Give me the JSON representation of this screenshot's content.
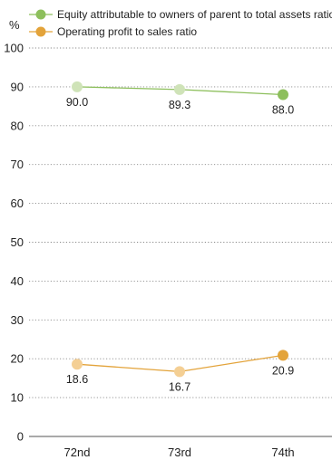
{
  "chart_data": {
    "type": "line",
    "ylabel": "%",
    "xlabel": "",
    "categories": [
      "72nd",
      "73rd",
      "74th"
    ],
    "ylim": [
      0,
      100
    ],
    "yticks": [
      0,
      10,
      20,
      30,
      40,
      50,
      60,
      70,
      80,
      90,
      100
    ],
    "grid": true,
    "legend_position": "top",
    "series": [
      {
        "name": "Equity attributable to owners of parent to total assets ratio",
        "values": [
          90.0,
          89.3,
          88.0
        ],
        "labels": [
          "90.0",
          "89.3",
          "88.0"
        ],
        "line_color": "#8dbf5c",
        "marker_colors": [
          "#cfe3b8",
          "#cfe3b8",
          "#8dbf5c"
        ]
      },
      {
        "name": "Operating profit to sales ratio",
        "values": [
          18.6,
          16.7,
          20.9
        ],
        "labels": [
          "18.6",
          "16.7",
          "20.9"
        ],
        "line_color": "#e3a33a",
        "marker_colors": [
          "#f4cf94",
          "#f4cf94",
          "#e3a33a"
        ]
      }
    ]
  }
}
